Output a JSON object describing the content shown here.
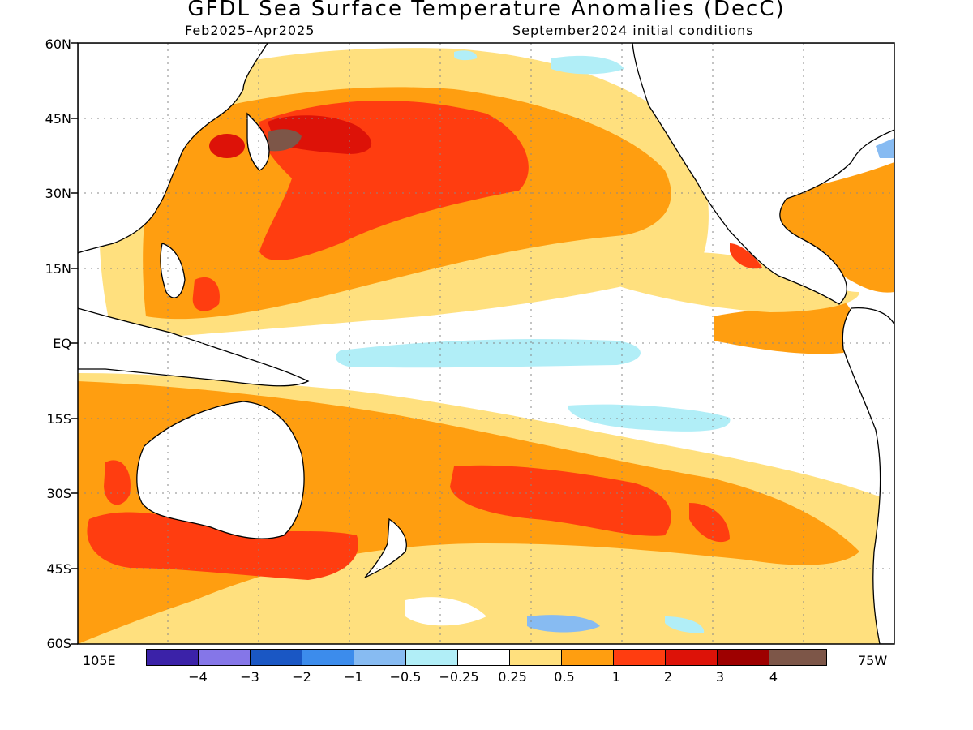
{
  "header": {
    "title": "GFDL Sea Surface Temperature Anomalies (DecC)",
    "period": "Feb2025–Apr2025",
    "initial_conditions": "September2024 initial conditions"
  },
  "axes": {
    "lat_labels": [
      "60N",
      "45N",
      "30N",
      "15N",
      "EQ",
      "15S",
      "30S",
      "45S",
      "60S"
    ],
    "lon_left_label": "105E",
    "lon_right_label": "75W",
    "lat_range": [
      -60,
      60
    ],
    "lon_range": [
      "105E",
      "75W"
    ],
    "grid": "dotted"
  },
  "colorbar": {
    "levels": [
      "−4",
      "−3",
      "−2",
      "−1",
      "−0.5",
      "−0.25",
      "0.25",
      "0.5",
      "1",
      "2",
      "3",
      "4"
    ],
    "colors": [
      "#3b22a8",
      "#8576e8",
      "#1a57c4",
      "#3c8cec",
      "#87bbf2",
      "#b1eef7",
      "#ffffff",
      "#ffe07e",
      "#ff9e10",
      "#ff3d10",
      "#dd1208",
      "#9e0000",
      "#7d5648"
    ]
  },
  "map": {
    "ocean_neutral": "#ffffff",
    "coast_color": "#000000"
  }
}
